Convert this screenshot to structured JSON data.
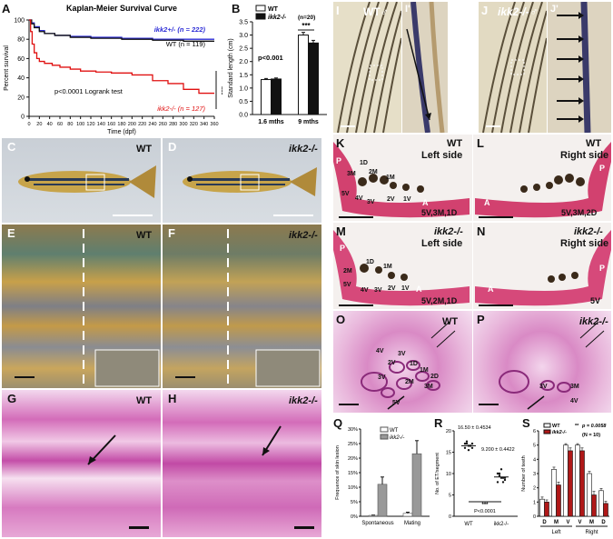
{
  "panels": {
    "A": {
      "label": "A",
      "title": "Kaplan-Meier Survival Curve",
      "ylabel": "Percent survival",
      "xlabel": "Time (dpf)",
      "legend": [
        "ikk2+/- (n = 222)",
        "WT (n = 119)",
        "ikk2-/- (n = 127)"
      ],
      "stat": "p<0.0001 Logrank test",
      "sig": "***"
    },
    "B": {
      "label": "B",
      "ylabel": "Standard length (cm)",
      "legend": [
        "WT",
        "ikk2-/-"
      ],
      "n": "(n=20)",
      "stat": "p<0.001",
      "sig": "***"
    },
    "C": {
      "label": "C",
      "tag": "WT"
    },
    "D": {
      "label": "D",
      "tag": "ikk2-/-"
    },
    "E": {
      "label": "E",
      "tag": "WT"
    },
    "F": {
      "label": "F",
      "tag": "ikk2-/-"
    },
    "G": {
      "label": "G",
      "tag": "WT"
    },
    "H": {
      "label": "H",
      "tag": "ikk2-/-"
    },
    "I": {
      "label": "I",
      "tag": "WT♂",
      "sub": "I'"
    },
    "J": {
      "label": "J",
      "tag": "ikk2-/-♂",
      "sub": "J'"
    },
    "K": {
      "label": "K",
      "tag": "WT",
      "side": "Left side",
      "formula": "5V,3M,1D",
      "teeth": [
        "1D",
        "3M",
        "2M",
        "1M",
        "5V",
        "4V",
        "3V",
        "2V",
        "1V"
      ],
      "p": "P",
      "a": "A"
    },
    "L": {
      "label": "L",
      "tag": "WT",
      "side": "Right side",
      "formula": "5V,3M,2D",
      "p": "P",
      "a": "A"
    },
    "M": {
      "label": "M",
      "tag": "ikk2-/-",
      "side": "Left side",
      "formula": "5V,2M,1D",
      "teeth": [
        "1D",
        "1M",
        "2M",
        "5V",
        "4V",
        "3V",
        "2V",
        "1V"
      ],
      "p": "P",
      "a": "A"
    },
    "N": {
      "label": "N",
      "tag": "ikk2-/-",
      "side": "Right side",
      "formula": "5V",
      "p": "P",
      "a": "A"
    },
    "O": {
      "label": "O",
      "tag": "WT",
      "teeth": [
        "4V",
        "3V",
        "2V",
        "1D",
        "1M",
        "2D",
        "3V",
        "2M",
        "3M",
        "5V"
      ]
    },
    "P": {
      "label": "P",
      "tag": "ikk2-/-",
      "teeth": [
        "3V",
        "3M",
        "4V"
      ]
    },
    "Q": {
      "label": "Q",
      "ylabel": "Frequence of skin lesion",
      "legend": [
        "WT",
        "ikk2-/-"
      ]
    },
    "R": {
      "label": "R",
      "ylabel": "No. of ET/segment",
      "wt_value": "16.50 ± 0.4534",
      "ko_value": "9.200 ± 0.4422",
      "sig": "***",
      "stat": "P<0.0001"
    },
    "S": {
      "label": "S",
      "ylabel": "Number of teeth",
      "legend": [
        "WT",
        "ikk2-/-"
      ],
      "stat": "p = 0.0058",
      "sig": "**",
      "n": "(N = 10)",
      "groups": [
        "Left",
        "Right"
      ]
    }
  },
  "chart_data": [
    {
      "type": "line",
      "panel": "A",
      "title": "Kaplan-Meier Survival Curve",
      "xlabel": "Time (dpf)",
      "ylabel": "Percent survival",
      "xlim": [
        0,
        360
      ],
      "ylim": [
        0,
        100
      ],
      "xticks": [
        0,
        20,
        40,
        60,
        80,
        100,
        120,
        140,
        160,
        180,
        200,
        220,
        240,
        260,
        280,
        300,
        320,
        340,
        360
      ],
      "yticks": [
        0,
        20,
        40,
        60,
        80,
        100
      ],
      "series": [
        {
          "name": "ikk2+/- (n = 222)",
          "color": "#2c2cd6",
          "x": [
            0,
            5,
            10,
            20,
            30,
            50,
            80,
            120,
            180,
            240,
            300,
            360
          ],
          "y": [
            100,
            97,
            93,
            89,
            86,
            84,
            83,
            82,
            81,
            80,
            80,
            80
          ]
        },
        {
          "name": "WT (n = 119)",
          "color": "#111111",
          "x": [
            0,
            5,
            10,
            20,
            30,
            50,
            80,
            120,
            180,
            240,
            300,
            360
          ],
          "y": [
            100,
            96,
            92,
            88,
            86,
            84,
            82,
            81,
            80,
            79,
            78,
            78
          ]
        },
        {
          "name": "ikk2-/- (n = 127)",
          "color": "#e01010",
          "x": [
            0,
            3,
            6,
            10,
            15,
            20,
            30,
            45,
            60,
            80,
            100,
            130,
            160,
            200,
            240,
            270,
            300,
            330,
            360
          ],
          "y": [
            100,
            88,
            75,
            66,
            60,
            57,
            55,
            53,
            51,
            49,
            47,
            46,
            45,
            43,
            37,
            34,
            28,
            24,
            24
          ]
        }
      ]
    },
    {
      "type": "bar",
      "panel": "B",
      "categories": [
        "1.6 mths",
        "9 mths"
      ],
      "ylabel": "Standard length (cm)",
      "ylim": [
        0,
        3.5
      ],
      "yticks": [
        0,
        0.5,
        1.0,
        1.5,
        2.0,
        2.5,
        3.0,
        3.5
      ],
      "series": [
        {
          "name": "WT",
          "values": [
            1.32,
            3.0
          ],
          "errors": [
            0.04,
            0.1
          ],
          "color": "#ffffff"
        },
        {
          "name": "ikk2-/-",
          "values": [
            1.34,
            2.7
          ],
          "errors": [
            0.04,
            0.1
          ],
          "color": "#111111"
        }
      ]
    },
    {
      "type": "bar",
      "panel": "Q",
      "categories": [
        "Spontaneous",
        "Mating"
      ],
      "ylabel": "Frequence of skin lesion",
      "ylim": [
        0,
        30
      ],
      "yticks": [
        0,
        5,
        10,
        15,
        20,
        25,
        30
      ],
      "yticklabels": [
        "0%",
        "5%",
        "10%",
        "15%",
        "20%",
        "25%",
        "30%"
      ],
      "series": [
        {
          "name": "WT",
          "values": [
            0.3,
            1.0
          ],
          "errors": [
            0.1,
            0.4
          ],
          "color": "#ffffff"
        },
        {
          "name": "ikk2-/-",
          "values": [
            11,
            21.5
          ],
          "errors": [
            2.5,
            4.5
          ],
          "color": "#999999"
        }
      ]
    },
    {
      "type": "scatter",
      "panel": "R",
      "categories": [
        "WT",
        "ikk2-/-"
      ],
      "ylabel": "No. of ET/segment",
      "ylim": [
        0,
        20
      ],
      "yticks": [
        0,
        5,
        10,
        15,
        20
      ],
      "series": [
        {
          "name": "WT",
          "x": "WT",
          "values": [
            17,
            17,
            16.5,
            16.5,
            16,
            16,
            17.5,
            15.5,
            16.5,
            17
          ]
        },
        {
          "name": "ikk2-/-",
          "x": "ikk2-/-",
          "values": [
            10,
            10,
            9,
            9,
            8.5,
            8,
            9.5,
            11,
            8,
            9
          ]
        }
      ],
      "means": [
        16.5,
        9.2
      ]
    },
    {
      "type": "bar",
      "panel": "S",
      "categories": [
        "D",
        "M",
        "V",
        "V",
        "M",
        "D"
      ],
      "ylabel": "Number of teeth",
      "ylim": [
        0,
        6
      ],
      "yticks": [
        0,
        1,
        2,
        3,
        4,
        5,
        6
      ],
      "series": [
        {
          "name": "WT",
          "values": [
            1.2,
            3.3,
            5.0,
            5.0,
            3.0,
            1.8
          ],
          "errors": [
            0.15,
            0.15,
            0.1,
            0.1,
            0.15,
            0.15
          ],
          "color": "#ffffff"
        },
        {
          "name": "ikk2-/-",
          "values": [
            1.0,
            2.2,
            4.6,
            4.6,
            1.5,
            0.9
          ],
          "errors": [
            0.15,
            0.2,
            0.2,
            0.2,
            0.25,
            0.15
          ],
          "color": "#b01818"
        }
      ]
    }
  ]
}
